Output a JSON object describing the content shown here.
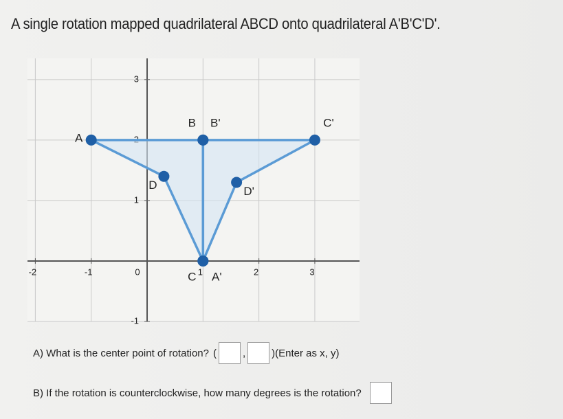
{
  "title": "A single rotation mapped quadrilateral ABCD onto quadrilateral A'B'C'D'.",
  "chart_data": {
    "type": "polygon",
    "xlim": [
      -2.14,
      3.8
    ],
    "ylim": [
      -1.0,
      3.35
    ],
    "xticks": [
      -2,
      -1,
      0,
      1,
      2,
      3
    ],
    "yticks": [
      -1,
      1,
      2,
      3
    ],
    "grid": true,
    "color": "#5b9bd5",
    "point_color": "#1f5fa6",
    "fill": "#d3e4f4",
    "points": [
      {
        "label": "A",
        "x": -1,
        "y": 2
      },
      {
        "label": "B",
        "x": 1,
        "y": 2
      },
      {
        "label": "C",
        "x": 1,
        "y": 0
      },
      {
        "label": "D",
        "x": 0.3,
        "y": 1.4
      },
      {
        "label": "A'",
        "x": 1,
        "y": 0
      },
      {
        "label": "B'",
        "x": 1,
        "y": 2
      },
      {
        "label": "C'",
        "x": 3,
        "y": 2
      },
      {
        "label": "D'",
        "x": 1.6,
        "y": 1.3
      }
    ]
  },
  "question_a": {
    "text": "A) What is the center point of rotation?",
    "open": "(",
    "comma": ",",
    "close": ")(Enter as x, y)"
  },
  "question_b": {
    "text": "B) If the rotation is counterclockwise, how many degrees is the rotation?"
  }
}
